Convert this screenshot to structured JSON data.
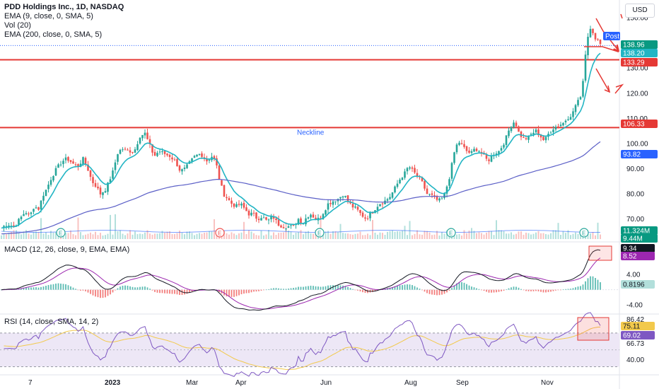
{
  "header": {
    "title": "PDD Holdings Inc., 1D, NASDAQ",
    "currency_button": "USD"
  },
  "legend": {
    "ema9": "EMA (9, close, 0, SMA, 5)",
    "vol": "Vol (20)",
    "ema200": "EMA (200, close, 0, SMA, 5)"
  },
  "colors": {
    "up": "#26a69a",
    "down": "#ef5350",
    "ema9": "#22b5c4",
    "ema200": "#5b5fc7",
    "support": "#e53935",
    "macd_line": "#131722",
    "signal_line": "#9c27b0",
    "rsi_line": "#7e57c2",
    "rsi_ma": "#f2c94c",
    "rsi_band": "#ede7f6"
  },
  "chart_data": [
    {
      "type": "candlestick",
      "pane": "price",
      "ylim": [
        62,
        152
      ],
      "price_ticks": [
        "150.00",
        "130.00",
        "120.00",
        "110.00",
        "100.00",
        "90.00",
        "80.00",
        "70.00"
      ],
      "levels": [
        {
          "name": "",
          "value": 133.29,
          "label": "133.29"
        },
        {
          "name": "Neckline",
          "value": 106.33,
          "label": "106.33"
        }
      ],
      "axis_tags": [
        {
          "text": "Post",
          "kind": "post"
        },
        {
          "text": "138.96",
          "kind": "post"
        },
        {
          "text": "138.96",
          "kind": "last"
        },
        {
          "text": "138.20",
          "kind": "ema9"
        },
        {
          "text": "133.29",
          "kind": "level"
        },
        {
          "text": "106.33",
          "kind": "level"
        },
        {
          "text": "93.82",
          "kind": "ema200"
        },
        {
          "text": "11.324M",
          "kind": "volume"
        },
        {
          "text": "9.44M",
          "kind": "volume"
        }
      ],
      "waypoints": [
        [
          0,
          66
        ],
        [
          10,
          68
        ],
        [
          20,
          67
        ],
        [
          28,
          70
        ],
        [
          36,
          73
        ],
        [
          42,
          71
        ],
        [
          48,
          75
        ],
        [
          55,
          74
        ],
        [
          60,
          79
        ],
        [
          66,
          82
        ],
        [
          72,
          86
        ],
        [
          80,
          90
        ],
        [
          88,
          93
        ],
        [
          95,
          94
        ],
        [
          103,
          92
        ],
        [
          110,
          91
        ],
        [
          118,
          94
        ],
        [
          124,
          90
        ],
        [
          130,
          85
        ],
        [
          136,
          83
        ],
        [
          142,
          80
        ],
        [
          150,
          82
        ],
        [
          160,
          89
        ],
        [
          166,
          96
        ],
        [
          172,
          98
        ],
        [
          180,
          97
        ],
        [
          190,
          97
        ],
        [
          198,
          103
        ],
        [
          205,
          104
        ],
        [
          212,
          99
        ],
        [
          218,
          95
        ],
        [
          225,
          97
        ],
        [
          232,
          96
        ],
        [
          240,
          95
        ],
        [
          248,
          93
        ],
        [
          255,
          89
        ],
        [
          262,
          90
        ],
        [
          270,
          93
        ],
        [
          276,
          95
        ],
        [
          284,
          96
        ],
        [
          292,
          93
        ],
        [
          300,
          95
        ],
        [
          305,
          93
        ],
        [
          310,
          86
        ],
        [
          316,
          80
        ],
        [
          322,
          78
        ],
        [
          328,
          76
        ],
        [
          334,
          75
        ],
        [
          340,
          76
        ],
        [
          346,
          74
        ],
        [
          352,
          72
        ],
        [
          358,
          72
        ],
        [
          364,
          70
        ],
        [
          370,
          71
        ],
        [
          378,
          69
        ],
        [
          386,
          71
        ],
        [
          393,
          68
        ],
        [
          400,
          67
        ],
        [
          408,
          67
        ],
        [
          415,
          67
        ],
        [
          422,
          70
        ],
        [
          428,
          68
        ],
        [
          434,
          71
        ],
        [
          440,
          72
        ],
        [
          446,
          70
        ],
        [
          452,
          70
        ],
        [
          458,
          73
        ],
        [
          464,
          76
        ],
        [
          470,
          77
        ],
        [
          478,
          78
        ],
        [
          486,
          80
        ],
        [
          492,
          77
        ],
        [
          498,
          75
        ],
        [
          504,
          74
        ],
        [
          510,
          72
        ],
        [
          518,
          70
        ],
        [
          524,
          72
        ],
        [
          530,
          74
        ],
        [
          536,
          76
        ],
        [
          544,
          77
        ],
        [
          552,
          79
        ],
        [
          560,
          83
        ],
        [
          566,
          86
        ],
        [
          572,
          88
        ],
        [
          578,
          91
        ],
        [
          584,
          89
        ],
        [
          590,
          87
        ],
        [
          596,
          85
        ],
        [
          604,
          80
        ],
        [
          612,
          79
        ],
        [
          620,
          77
        ],
        [
          628,
          79
        ],
        [
          636,
          87
        ],
        [
          642,
          96
        ],
        [
          648,
          101
        ],
        [
          654,
          99
        ],
        [
          660,
          97
        ],
        [
          666,
          96
        ],
        [
          672,
          98
        ],
        [
          678,
          97
        ],
        [
          684,
          95
        ],
        [
          690,
          93
        ],
        [
          698,
          96
        ],
        [
          706,
          97
        ],
        [
          714,
          101
        ],
        [
          722,
          107
        ],
        [
          728,
          109
        ],
        [
          734,
          104
        ],
        [
          740,
          102
        ],
        [
          746,
          102
        ],
        [
          752,
          104
        ],
        [
          758,
          105
        ],
        [
          764,
          103
        ],
        [
          770,
          101
        ],
        [
          776,
          104
        ],
        [
          782,
          106
        ],
        [
          788,
          107
        ],
        [
          796,
          108
        ],
        [
          802,
          110
        ],
        [
          810,
          112
        ],
        [
          816,
          117
        ],
        [
          822,
          118
        ],
        [
          826,
          130
        ],
        [
          830,
          141
        ],
        [
          834,
          146
        ],
        [
          838,
          145
        ],
        [
          842,
          142
        ],
        [
          846,
          141
        ],
        [
          849,
          139
        ]
      ]
    },
    {
      "type": "bar",
      "pane": "volume",
      "name": "Vol (20)"
    },
    {
      "type": "line",
      "pane": "macd",
      "title": "MACD (12, 26, close, 9, EMA, EMA)",
      "series": [
        {
          "name": "MACD",
          "last": "9.34"
        },
        {
          "name": "Signal",
          "last": "8.52"
        },
        {
          "name": "Histogram",
          "last": "0.8196"
        }
      ],
      "y_ticks": [
        "4.00",
        "-4.00"
      ],
      "ylim": [
        -6,
        12
      ]
    },
    {
      "type": "line",
      "pane": "rsi",
      "title": "RSI (14, close, SMA, 14, 2)",
      "series": [
        {
          "name": "RSI",
          "last": "69.02"
        },
        {
          "name": "RSI-based MA",
          "last": "75.11"
        }
      ],
      "y_ticks": [
        "86.42",
        "66.73",
        "40.00"
      ],
      "upper_band": 70,
      "lower_band": 30,
      "ylim": [
        22,
        90
      ]
    },
    {
      "type": "axis",
      "pane": "time",
      "x_labels": [
        "7",
        "2023",
        "Mar",
        "Apr",
        "Jun",
        "Aug",
        "Sep",
        "Nov"
      ]
    }
  ]
}
